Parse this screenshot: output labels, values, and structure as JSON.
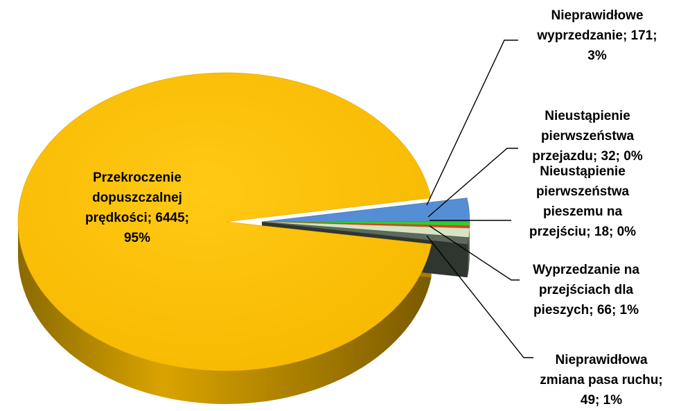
{
  "chart_data": {
    "type": "pie",
    "title": "",
    "slices": [
      {
        "label": "Przekroczenie dopuszczalnej prędkości",
        "value": 6445,
        "percent": "95%",
        "color": "#FFC000",
        "label_lines": [
          "Przekroczenie",
          "dopuszczalnej",
          "prędkości; 6445;",
          "95%"
        ]
      },
      {
        "label": "Nieprawidłowe wyprzedzanie",
        "value": 171,
        "percent": "3%",
        "color": "#558ED5",
        "label_lines": [
          "Nieprawidłowe",
          "wyprzedzanie; 171;",
          "3%"
        ]
      },
      {
        "label": "Nieustąpienie pierwszeństwa przejazdu",
        "value": 32,
        "percent": "0%",
        "color": "#33CC33",
        "label_lines": [
          "Nieustąpienie",
          "pierwszeństwa",
          "przejazdu; 32; 0%"
        ]
      },
      {
        "label": "Nieustąpienie pierwszeństwa pieszemu na przejściu",
        "value": 18,
        "percent": "0%",
        "color": "#E8401C",
        "label_lines": [
          "Nieustąpienie",
          "pierwszeństwa",
          "pieszemu na",
          "przejściu; 18; 0%"
        ]
      },
      {
        "label": "Wyprzedzanie na przejściach dla pieszych",
        "value": 66,
        "percent": "1%",
        "color": "#D6E4C2",
        "label_lines": [
          "Wyprzedzanie na",
          "przejściach dla",
          "pieszych; 66; 1%"
        ]
      },
      {
        "label": "Nieprawidłowa zmiana pasa ruchu",
        "value": 49,
        "percent": "1%",
        "color": "#5E6A5E",
        "label_lines": [
          "Nieprawidłowa",
          "zmiana pasa ruchu;",
          "49; 1%"
        ]
      }
    ],
    "legend": "none"
  }
}
